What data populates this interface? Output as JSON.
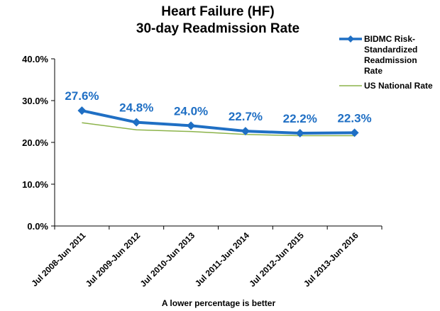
{
  "chart_data": {
    "type": "line",
    "title_lines": [
      "Heart Failure (HF)",
      "30-day Readmission Rate"
    ],
    "categories": [
      "Jul 2008-Jun 2011",
      "Jul 2009-Jun 2012",
      "Jul 2010-Jun 2013",
      "Jul 2011-Jun 2014",
      "Jul 2012-Jun 2015",
      "Jul 2013-Jun 2016"
    ],
    "series": [
      {
        "name": "BIDMC Risk-Standardized Readmission Rate",
        "legend_lines": [
          "BIDMC Risk-",
          "Standardized",
          "Readmission",
          "Rate"
        ],
        "values": [
          27.6,
          24.8,
          24.0,
          22.7,
          22.2,
          22.3
        ],
        "data_labels": [
          "27.6%",
          "24.8%",
          "24.0%",
          "22.7%",
          "22.2%",
          "22.3%"
        ],
        "color": "#1f6fc4",
        "marker": "diamond"
      },
      {
        "name": "US National Rate",
        "legend_lines": [
          "US National Rate"
        ],
        "values": [
          24.7,
          23.0,
          22.6,
          21.9,
          21.6,
          21.6
        ],
        "color": "#8cb34a",
        "marker": "none"
      }
    ],
    "y_ticks": [
      "0.0%",
      "10.0%",
      "20.0%",
      "30.0%",
      "40.0%"
    ],
    "ylim": [
      0,
      40
    ],
    "grid": false,
    "legend_position": "top-right",
    "note": "A lower percentage is better"
  }
}
